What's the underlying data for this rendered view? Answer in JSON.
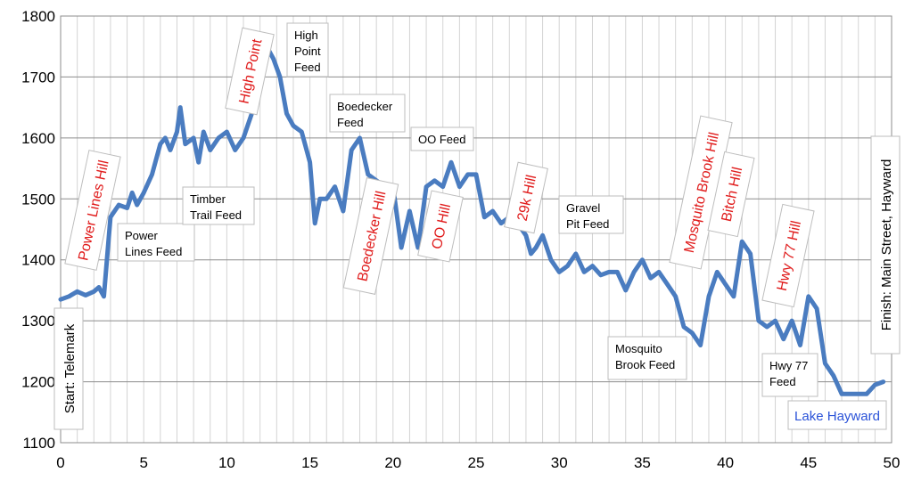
{
  "chart_data": {
    "type": "line",
    "title": "",
    "xlabel": "",
    "ylabel": "",
    "xlim": [
      0,
      50
    ],
    "ylim": [
      1100,
      1800
    ],
    "x_ticks": [
      0,
      5,
      10,
      15,
      20,
      25,
      30,
      35,
      40,
      45,
      50
    ],
    "y_ticks": [
      1100,
      1200,
      1300,
      1400,
      1500,
      1600,
      1700,
      1800
    ],
    "grid": true,
    "series": [
      {
        "name": "",
        "color": "#4a7cc0",
        "x": [
          0,
          0.5,
          1,
          1.5,
          2,
          2.3,
          2.6,
          3,
          3.5,
          4,
          4.3,
          4.6,
          5,
          5.5,
          6,
          6.3,
          6.6,
          7,
          7.2,
          7.5,
          8,
          8.3,
          8.6,
          9,
          9.5,
          10,
          10.5,
          11,
          11.5,
          12,
          12.4,
          12.8,
          13.2,
          13.6,
          14,
          14.5,
          15,
          15.3,
          15.6,
          16,
          16.5,
          17,
          17.5,
          18,
          18.5,
          19,
          19.5,
          20,
          20.5,
          21,
          21.5,
          22,
          22.5,
          23,
          23.5,
          24,
          24.5,
          25,
          25.5,
          26,
          26.5,
          27,
          27.5,
          28,
          28.3,
          28.6,
          29,
          29.5,
          30,
          30.5,
          31,
          31.5,
          32,
          32.5,
          33,
          33.5,
          34,
          34.5,
          35,
          35.5,
          36,
          36.5,
          37,
          37.5,
          38,
          38.5,
          39,
          39.5,
          40,
          40.5,
          41,
          41.5,
          42,
          42.5,
          43,
          43.5,
          44,
          44.5,
          45,
          45.5,
          46,
          46.5,
          47,
          47.5,
          48,
          48.5,
          49,
          49.5
        ],
        "values": [
          1335,
          1340,
          1348,
          1342,
          1348,
          1355,
          1340,
          1470,
          1490,
          1485,
          1510,
          1490,
          1510,
          1540,
          1590,
          1600,
          1580,
          1610,
          1650,
          1590,
          1600,
          1560,
          1610,
          1580,
          1600,
          1610,
          1580,
          1600,
          1640,
          1700,
          1750,
          1730,
          1700,
          1640,
          1620,
          1610,
          1560,
          1460,
          1500,
          1500,
          1520,
          1480,
          1580,
          1600,
          1540,
          1530,
          1520,
          1520,
          1420,
          1480,
          1420,
          1520,
          1530,
          1520,
          1560,
          1520,
          1540,
          1540,
          1470,
          1480,
          1460,
          1470,
          1460,
          1440,
          1410,
          1420,
          1440,
          1400,
          1380,
          1390,
          1410,
          1380,
          1390,
          1375,
          1380,
          1380,
          1350,
          1380,
          1400,
          1370,
          1380,
          1360,
          1340,
          1290,
          1280,
          1260,
          1340,
          1380,
          1360,
          1340,
          1430,
          1410,
          1300,
          1290,
          1300,
          1270,
          1300,
          1260,
          1340,
          1320,
          1230,
          1210,
          1180,
          1180,
          1180,
          1180,
          1195,
          1200
        ]
      }
    ],
    "annotations": {
      "feeds": [
        {
          "lines": [
            "Power",
            "Lines Feed"
          ]
        },
        {
          "lines": [
            "Timber",
            "Trail Feed"
          ]
        },
        {
          "lines": [
            "High",
            "Point",
            "Feed"
          ]
        },
        {
          "lines": [
            "Boedecker",
            "Feed"
          ]
        },
        {
          "lines": [
            "OO Feed"
          ]
        },
        {
          "lines": [
            "Gravel",
            "Pit Feed"
          ]
        },
        {
          "lines": [
            "Mosquito",
            "Brook Feed"
          ]
        },
        {
          "lines": [
            "Hwy 77",
            "Feed"
          ]
        }
      ],
      "hills": [
        "Power Lines Hill",
        "High Point",
        "Boedecker Hill",
        "OO Hill",
        "29k Hill",
        "Mosquito Brook Hill",
        "Bitch Hill",
        "Hwy 77 Hill"
      ],
      "start": "Start: Telemark",
      "finish": "Finish: Main Street, Hayward",
      "lake": "Lake Hayward"
    }
  }
}
